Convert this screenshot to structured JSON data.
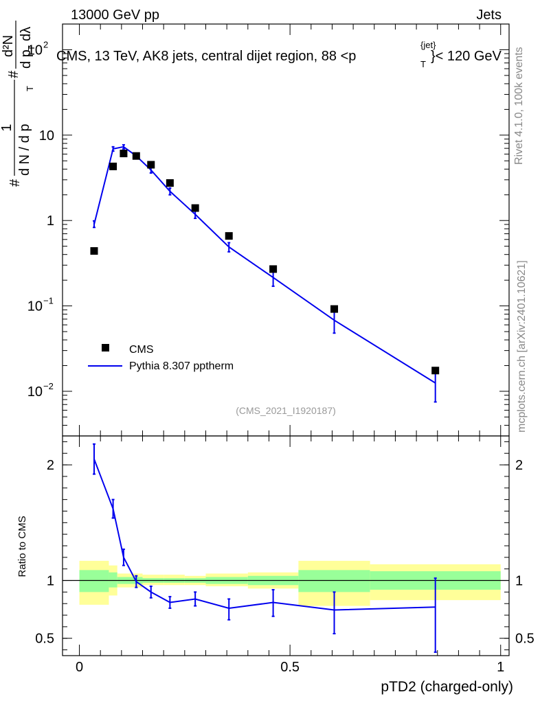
{
  "header": {
    "energy": "13000 GeV pp",
    "process": "Jets",
    "analysis": "(CMS_2021_I1920187)",
    "side_rivet": "Rivet 4.1.0,  100k events",
    "side_site": "mcplots.cern.ch [arXiv:2401.10621]"
  },
  "colors": {
    "mc": "#0000ee",
    "data": "#000000",
    "band_inner": "#99ff99",
    "band_outer": "#ffff99"
  },
  "chart_data": [
    {
      "panel": "main",
      "type": "scatter+line",
      "title": "CMS, 13 TeV, AK8 jets, central dijet region, 88 <p_T^{jet}< 120 GeV",
      "title_parts": {
        "prefix": "CMS, 13 TeV, AK8 jets, central dijet region, 88 <p",
        "sup": "{jet}",
        "sub": "T",
        "suffix": "}< 120 GeV"
      },
      "ylabel": "1/(dN/dp_T) d2N/(dp_T dλ)",
      "ylabel_parts": {
        "num": "1",
        "den": "d N / d p",
        "hash": "#",
        "sub": "T",
        "rnum": "d²N",
        "rden": "d p",
        "rden2": "dλ"
      },
      "yscale": "log",
      "ylim": [
        0.003,
        200
      ],
      "yticks": [
        {
          "value": 0.01,
          "base": "10",
          "exp": "−2"
        },
        {
          "value": 0.1,
          "base": "10",
          "exp": "−1"
        },
        {
          "value": 1,
          "base": "1",
          "exp": ""
        },
        {
          "value": 10,
          "base": "10",
          "exp": ""
        },
        {
          "value": 100,
          "base": "10",
          "exp": "2"
        }
      ],
      "xlim": [
        -0.04,
        1.02
      ],
      "legend": {
        "position": "bottom-left",
        "data_label": "CMS",
        "mc_label": "Pythia 8.307 pptherm"
      },
      "data": {
        "name": "CMS",
        "x": [
          0.035,
          0.08,
          0.105,
          0.135,
          0.17,
          0.215,
          0.275,
          0.355,
          0.46,
          0.605,
          0.845
        ],
        "y": [
          0.44,
          4.3,
          6.1,
          5.7,
          4.5,
          2.75,
          1.4,
          0.66,
          0.27,
          0.092,
          0.0175
        ]
      },
      "mc": {
        "name": "Pythia 8.307 pptherm",
        "x": [
          0.035,
          0.08,
          0.105,
          0.135,
          0.17,
          0.215,
          0.275,
          0.355,
          0.46,
          0.605,
          0.845
        ],
        "y": [
          0.9,
          6.9,
          7.3,
          5.7,
          3.9,
          2.2,
          1.18,
          0.49,
          0.215,
          0.068,
          0.0125
        ],
        "ylow": [
          0.83,
          6.5,
          6.9,
          5.4,
          3.6,
          2.0,
          1.06,
          0.43,
          0.17,
          0.048,
          0.0075
        ],
        "yhigh": [
          0.99,
          7.3,
          7.7,
          6.0,
          4.2,
          2.4,
          1.3,
          0.55,
          0.26,
          0.088,
          0.0175
        ]
      }
    },
    {
      "panel": "ratio",
      "type": "line",
      "ylabel": "Ratio to CMS",
      "ylim": [
        0.35,
        2.25
      ],
      "yticks": [
        0.5,
        1,
        2
      ],
      "ytick_labels": [
        "0.5",
        "1",
        "2"
      ],
      "xlabel": "pTD2 (charged-only)",
      "xlim": [
        -0.04,
        1.02
      ],
      "xticks": [
        0,
        0.5,
        1
      ],
      "xtick_labels": [
        "0",
        "0.5",
        "1"
      ],
      "bands": {
        "edges": [
          0,
          0.07,
          0.09,
          0.15,
          0.2,
          0.25,
          0.3,
          0.4,
          0.52,
          0.69,
          1.0
        ],
        "inner_lo": [
          0.9,
          0.94,
          0.97,
          0.98,
          0.98,
          0.98,
          0.97,
          0.96,
          0.9,
          0.92
        ],
        "inner_hi": [
          1.09,
          1.07,
          1.03,
          1.02,
          1.02,
          1.02,
          1.03,
          1.04,
          1.09,
          1.08
        ],
        "outer_lo": [
          0.79,
          0.87,
          0.94,
          0.96,
          0.96,
          0.96,
          0.95,
          0.93,
          0.78,
          0.83
        ],
        "outer_hi": [
          1.17,
          1.13,
          1.06,
          1.05,
          1.05,
          1.04,
          1.06,
          1.07,
          1.17,
          1.14
        ]
      },
      "mc_ratio": {
        "x": [
          0.035,
          0.08,
          0.105,
          0.135,
          0.17,
          0.215,
          0.275,
          0.355,
          0.46,
          0.605,
          0.845
        ],
        "y": [
          2.05,
          1.62,
          1.2,
          0.99,
          0.9,
          0.81,
          0.84,
          0.76,
          0.81,
          0.745,
          0.77
        ],
        "ylow": [
          1.92,
          1.54,
          1.13,
          0.94,
          0.85,
          0.76,
          0.78,
          0.66,
          0.69,
          0.54,
          0.38
        ],
        "yhigh": [
          2.18,
          1.7,
          1.27,
          1.04,
          0.95,
          0.86,
          0.9,
          0.84,
          0.92,
          0.9,
          1.02
        ]
      }
    }
  ]
}
